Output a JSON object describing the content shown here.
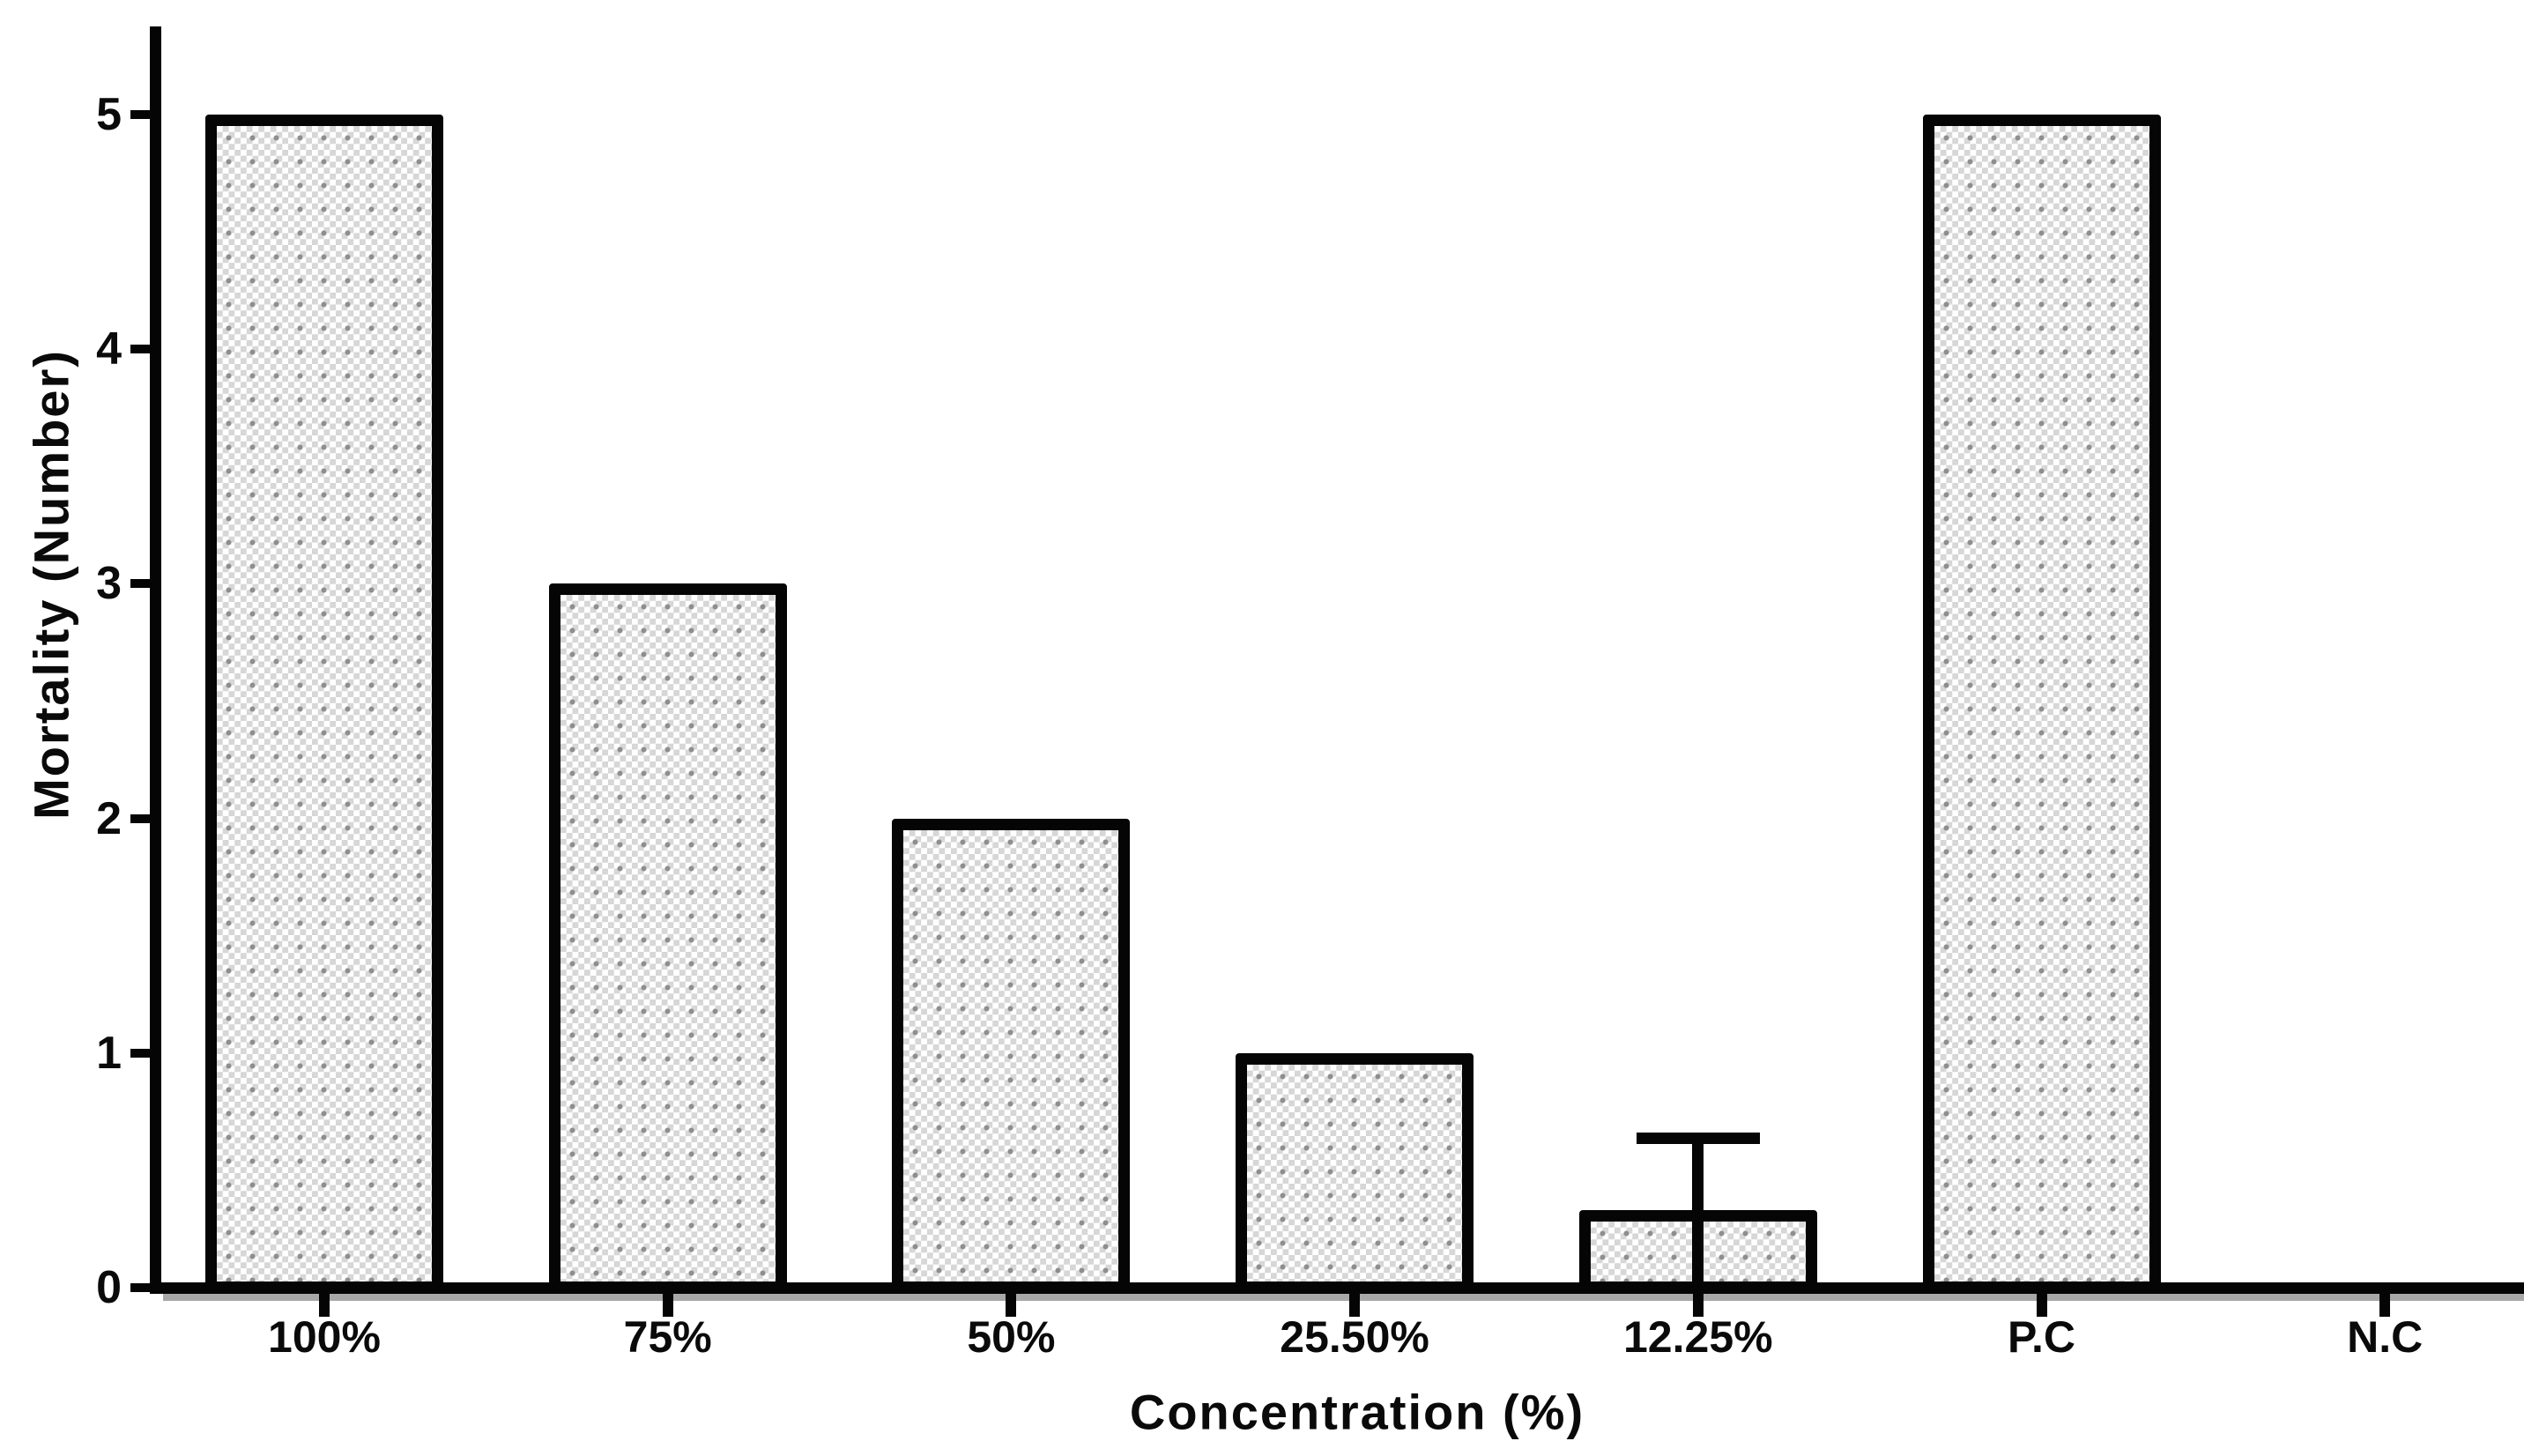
{
  "chart_data": {
    "type": "bar",
    "title": "",
    "xlabel": "Concentration (%)",
    "ylabel": "Mortality (Number)",
    "categories": [
      "100%",
      "75%",
      "50%",
      "25.50%",
      "12.25%",
      "P.C",
      "N.C"
    ],
    "values": [
      5,
      3,
      2,
      1,
      0.33,
      5,
      0
    ],
    "errors_plus": [
      0,
      0,
      0,
      0,
      0.33,
      0,
      0
    ],
    "yticks": [
      0,
      1,
      2,
      3,
      4,
      5
    ],
    "ylim": [
      0,
      5
    ],
    "grid": false,
    "legend": null,
    "bar_fill_style": "dotted-checker-pattern",
    "colors": {
      "ink": "#050505",
      "bar_pattern_light": "#d6d6d6",
      "bar_pattern_dot": "#8e8e8e",
      "axis_shadow": "#a8a8a8",
      "background": "#ffffff"
    }
  }
}
